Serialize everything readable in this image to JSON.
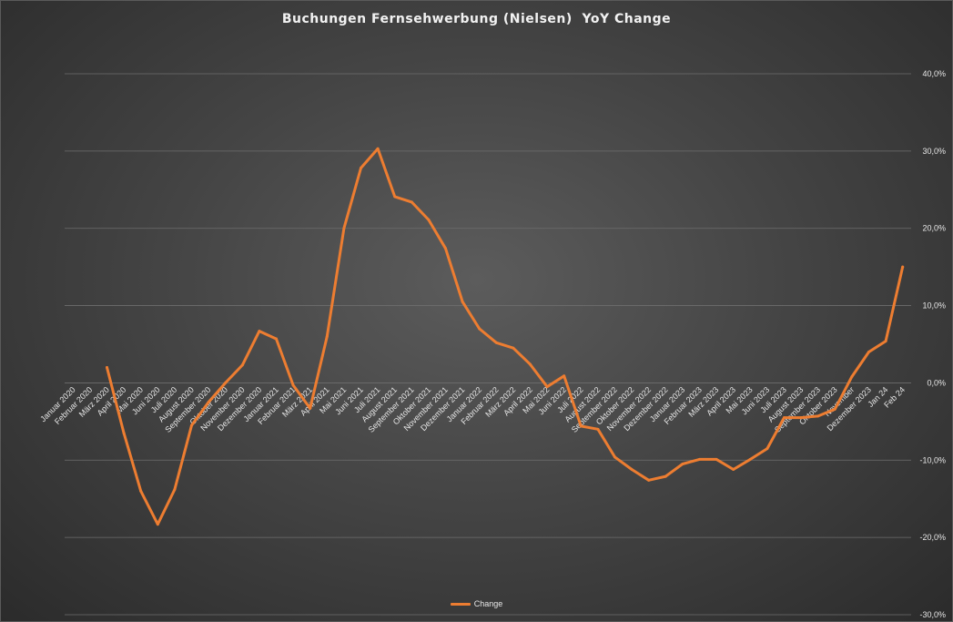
{
  "chart_data": {
    "type": "line",
    "title": "Buchungen Fernsehwerbung (Nielsen)  YoY Change",
    "xlabel": "",
    "ylabel": "",
    "categories": [
      "Januar 2020",
      "Februar 2020",
      "März 2020",
      "April 2020",
      "Mai 2020",
      "Juni 2020",
      "Juli 2020",
      "August 2020",
      "September 2020",
      "Oktober 2020",
      "November 2020",
      "Dezember 2020",
      "Januar 2021",
      "Februar 2021",
      "März 2021",
      "April 2021",
      "Mai 2021",
      "Juni 2021",
      "Juli 2021",
      "August 2021",
      "September 2021",
      "Oktober 2021",
      "November 2021",
      "Dezember 2021",
      "Januar 2022",
      "Februar 2022",
      "März 2022",
      "April 2022",
      "Mai 2022",
      "Juni 2022",
      "Juli 2022",
      "August 2022",
      "September 2022",
      "Oktober 2022",
      "November 2022",
      "Dezember 2022",
      "Januar 2023",
      "Februar 2023",
      "März 2023",
      "April 2023",
      "Mai 2023",
      "Juni 2023",
      "Juli 2023",
      "August 2023",
      "September 2023",
      "Oktober 2023",
      "November",
      "Dezember 2023",
      "Jan 24",
      "Feb 24"
    ],
    "series": [
      {
        "name": "Change",
        "color": "#ed7d31",
        "values": [
          null,
          null,
          2.0,
          -6.5,
          -14.0,
          -18.3,
          -13.8,
          -5.5,
          -2.5,
          0.0,
          2.3,
          6.7,
          5.7,
          -0.3,
          -3.3,
          6.0,
          20.0,
          27.8,
          30.3,
          24.1,
          23.4,
          21.1,
          17.4,
          10.5,
          7.0,
          5.2,
          4.5,
          2.4,
          -0.5,
          0.9,
          -5.6,
          -6.0,
          -9.6,
          -11.2,
          -12.6,
          -12.1,
          -10.5,
          -9.9,
          -9.9,
          -11.2,
          -9.9,
          -8.5,
          -4.5,
          -4.5,
          -4.3,
          -3.4,
          0.8,
          4.0,
          5.4,
          15.0
        ]
      }
    ],
    "ylim": [
      -30,
      40
    ],
    "yticks": [
      "40,0%",
      "30,0%",
      "20,0%",
      "10,0%",
      "0,0%",
      "-10,0%",
      "-20,0%",
      "-30,0%"
    ],
    "y_axis_side": "right",
    "grid": true,
    "legend": {
      "position": "bottom",
      "label": "Change"
    }
  }
}
